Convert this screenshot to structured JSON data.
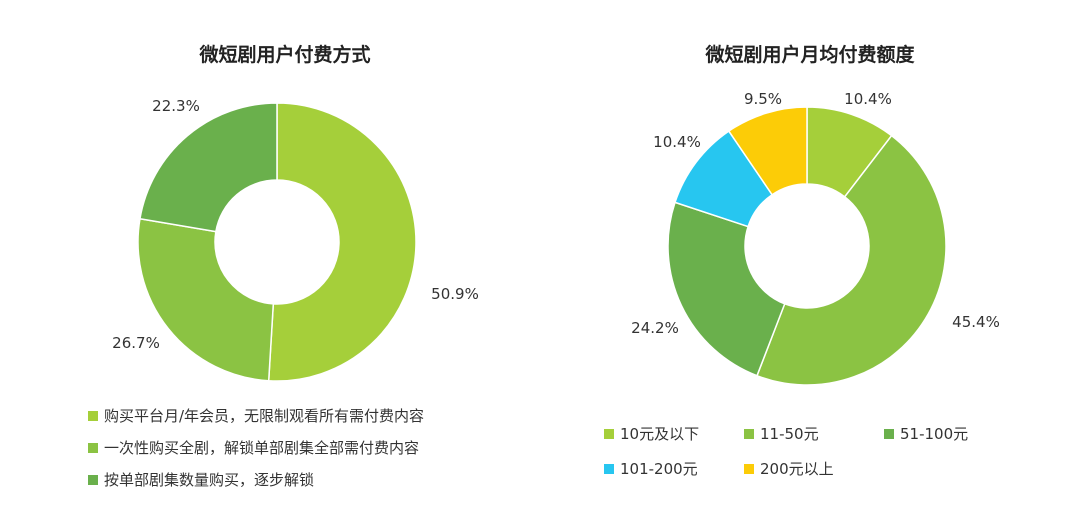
{
  "chart_data": [
    {
      "type": "pie",
      "title": "微短剧用户付费方式",
      "slices": [
        {
          "label": "购买平台月/年会员，无限制观看所有需付费内容",
          "value": 50.9,
          "display": "50.9%",
          "color": "#a5cf3a"
        },
        {
          "label": "一次性购买全剧，解锁单部剧集全部需付费内容",
          "value": 26.7,
          "display": "26.7%",
          "color": "#8bc343"
        },
        {
          "label": "按单部剧集数量购买，逐步解锁",
          "value": 22.3,
          "display": "22.3%",
          "color": "#6ab04c"
        }
      ]
    },
    {
      "type": "pie",
      "title": "微短剧用户月均付费额度",
      "slices": [
        {
          "label": "10元及以下",
          "value": 10.4,
          "display": "10.4%",
          "color": "#a5cf3a"
        },
        {
          "label": "11-50元",
          "value": 45.4,
          "display": "45.4%",
          "color": "#8bc343"
        },
        {
          "label": "51-100元",
          "value": 24.2,
          "display": "24.2%",
          "color": "#6ab04c"
        },
        {
          "label": "101-200元",
          "value": 10.4,
          "display": "10.4%",
          "color": "#27c6f0"
        },
        {
          "label": "200元以上",
          "value": 9.5,
          "display": "9.5%",
          "color": "#fccc07"
        }
      ]
    }
  ]
}
